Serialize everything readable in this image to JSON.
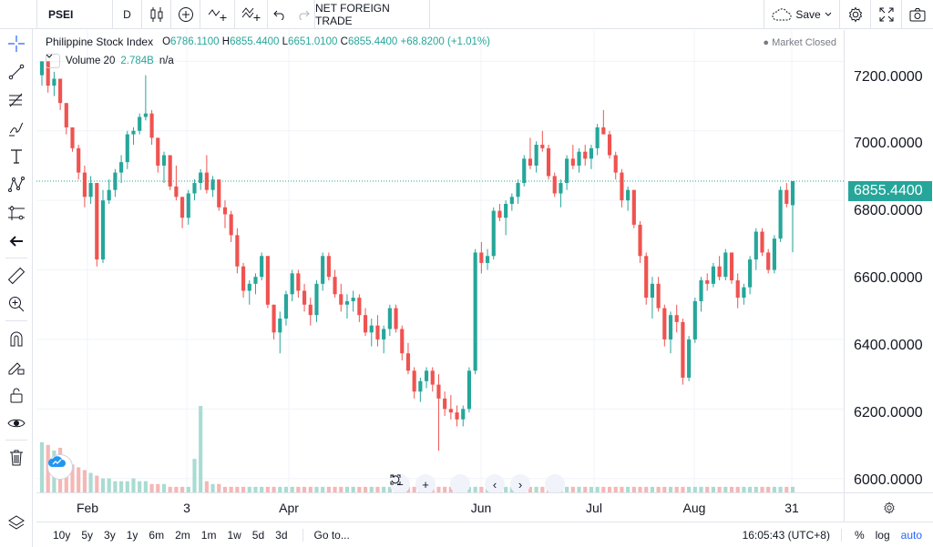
{
  "toolbar": {
    "symbol": "PSEI",
    "interval": "D",
    "indicator_label": "NET FOREIGN TRADE",
    "save_label": "Save"
  },
  "legend": {
    "title": "Philippine Stock Index",
    "o": "6786.1100",
    "h": "6855.4400",
    "l": "6651.0100",
    "c": "6855.4400",
    "change": "+68.8200 (+1.01%)",
    "market_status": "Market Closed",
    "volume_label": "Volume 20",
    "volume_value": "2.784B",
    "volume_ma": "n/a"
  },
  "price_scale": {
    "labels": [
      "7200.0000",
      "7000.0000",
      "6800.0000",
      "6600.0000",
      "6400.0000",
      "6200.0000",
      "6000.0000"
    ],
    "current": "6855.4400"
  },
  "time_scale": {
    "labels": [
      "Feb",
      "3",
      "Apr",
      "Jun",
      "Jul",
      "Aug",
      "31"
    ]
  },
  "bottom": {
    "ranges": [
      "10y",
      "5y",
      "3y",
      "1y",
      "6m",
      "2m",
      "1m",
      "1w",
      "5d",
      "3d"
    ],
    "goto": "Go to...",
    "clock": "16:05:43 (UTC+8)",
    "scale_opts": [
      "%",
      "log",
      "auto"
    ]
  },
  "colors": {
    "up": "#26a69a",
    "down": "#ef5350",
    "up_volume": "#a9dcd2",
    "down_volume": "#f5b7b5",
    "accent": "#2962ff"
  },
  "chart_data": {
    "type": "candlestick",
    "ylim": [
      5960,
      7290
    ],
    "candles": [
      [
        7160,
        7200,
        7130,
        7200
      ],
      [
        7200,
        7200,
        7110,
        7130
      ],
      [
        7130,
        7170,
        7100,
        7150
      ],
      [
        7150,
        7150,
        7060,
        7080
      ],
      [
        7080,
        7080,
        6990,
        7010
      ],
      [
        7010,
        7010,
        6940,
        6950
      ],
      [
        6950,
        6960,
        6860,
        6880
      ],
      [
        6880,
        6900,
        6780,
        6810
      ],
      [
        6810,
        6870,
        6790,
        6850
      ],
      [
        6850,
        6850,
        6610,
        6630
      ],
      [
        6630,
        6830,
        6620,
        6800
      ],
      [
        6800,
        6860,
        6790,
        6830
      ],
      [
        6830,
        6890,
        6810,
        6880
      ],
      [
        6880,
        6930,
        6850,
        6910
      ],
      [
        6910,
        7000,
        6890,
        6990
      ],
      [
        6990,
        7010,
        6960,
        7000
      ],
      [
        7000,
        7050,
        6990,
        7040
      ],
      [
        7040,
        7160,
        7030,
        7050
      ],
      [
        7050,
        7060,
        6960,
        6980
      ],
      [
        6980,
        6980,
        6880,
        6900
      ],
      [
        6900,
        6940,
        6850,
        6930
      ],
      [
        6930,
        6930,
        6830,
        6840
      ],
      [
        6840,
        6900,
        6800,
        6810
      ],
      [
        6810,
        6810,
        6720,
        6750
      ],
      [
        6750,
        6830,
        6730,
        6820
      ],
      [
        6820,
        6860,
        6800,
        6850
      ],
      [
        6850,
        6890,
        6830,
        6880
      ],
      [
        6880,
        6930,
        6820,
        6830
      ],
      [
        6830,
        6870,
        6810,
        6860
      ],
      [
        6860,
        6860,
        6770,
        6780
      ],
      [
        6780,
        6800,
        6720,
        6760
      ],
      [
        6760,
        6770,
        6680,
        6700
      ],
      [
        6700,
        6720,
        6590,
        6610
      ],
      [
        6610,
        6620,
        6520,
        6540
      ],
      [
        6540,
        6570,
        6500,
        6560
      ],
      [
        6560,
        6590,
        6530,
        6580
      ],
      [
        6580,
        6650,
        6570,
        6640
      ],
      [
        6640,
        6640,
        6490,
        6500
      ],
      [
        6500,
        6500,
        6400,
        6420
      ],
      [
        6420,
        6480,
        6360,
        6460
      ],
      [
        6460,
        6540,
        6440,
        6530
      ],
      [
        6530,
        6600,
        6510,
        6590
      ],
      [
        6590,
        6600,
        6520,
        6540
      ],
      [
        6540,
        6560,
        6480,
        6500
      ],
      [
        6500,
        6520,
        6440,
        6470
      ],
      [
        6470,
        6570,
        6450,
        6560
      ],
      [
        6560,
        6650,
        6540,
        6640
      ],
      [
        6640,
        6650,
        6570,
        6580
      ],
      [
        6580,
        6600,
        6520,
        6530
      ],
      [
        6530,
        6560,
        6480,
        6500
      ],
      [
        6500,
        6530,
        6460,
        6510
      ],
      [
        6510,
        6540,
        6480,
        6520
      ],
      [
        6520,
        6530,
        6450,
        6470
      ],
      [
        6470,
        6490,
        6410,
        6420
      ],
      [
        6420,
        6460,
        6380,
        6440
      ],
      [
        6440,
        6470,
        6380,
        6400
      ],
      [
        6400,
        6440,
        6360,
        6430
      ],
      [
        6430,
        6500,
        6410,
        6490
      ],
      [
        6490,
        6500,
        6420,
        6430
      ],
      [
        6430,
        6440,
        6340,
        6360
      ],
      [
        6360,
        6390,
        6300,
        6310
      ],
      [
        6310,
        6320,
        6230,
        6250
      ],
      [
        6250,
        6290,
        6220,
        6280
      ],
      [
        6280,
        6320,
        6260,
        6310
      ],
      [
        6310,
        6320,
        6250,
        6270
      ],
      [
        6270,
        6300,
        6080,
        6230
      ],
      [
        6230,
        6250,
        6180,
        6200
      ],
      [
        6200,
        6240,
        6170,
        6190
      ],
      [
        6190,
        6210,
        6150,
        6170
      ],
      [
        6170,
        6210,
        6150,
        6200
      ],
      [
        6200,
        6320,
        6190,
        6310
      ],
      [
        6310,
        6660,
        6300,
        6650
      ],
      [
        6650,
        6680,
        6590,
        6620
      ],
      [
        6620,
        6660,
        6600,
        6640
      ],
      [
        6640,
        6780,
        6630,
        6770
      ],
      [
        6770,
        6790,
        6740,
        6750
      ],
      [
        6750,
        6800,
        6700,
        6790
      ],
      [
        6790,
        6820,
        6770,
        6810
      ],
      [
        6810,
        6860,
        6790,
        6850
      ],
      [
        6850,
        6930,
        6840,
        6920
      ],
      [
        6920,
        6980,
        6890,
        6900
      ],
      [
        6900,
        6970,
        6880,
        6960
      ],
      [
        6960,
        7000,
        6940,
        6950
      ],
      [
        6950,
        6960,
        6860,
        6870
      ],
      [
        6870,
        6880,
        6810,
        6820
      ],
      [
        6820,
        6860,
        6780,
        6850
      ],
      [
        6850,
        6930,
        6830,
        6920
      ],
      [
        6920,
        6960,
        6890,
        6900
      ],
      [
        6900,
        6950,
        6880,
        6940
      ],
      [
        6940,
        6960,
        6900,
        6920
      ],
      [
        6920,
        6960,
        6890,
        6950
      ],
      [
        6950,
        7020,
        6930,
        7010
      ],
      [
        7010,
        7060,
        6990,
        6990
      ],
      [
        6990,
        7000,
        6920,
        6930
      ],
      [
        6930,
        6940,
        6860,
        6880
      ],
      [
        6880,
        6890,
        6780,
        6800
      ],
      [
        6800,
        6840,
        6770,
        6830
      ],
      [
        6830,
        6830,
        6720,
        6730
      ],
      [
        6730,
        6740,
        6620,
        6640
      ],
      [
        6640,
        6650,
        6500,
        6520
      ],
      [
        6520,
        6580,
        6460,
        6560
      ],
      [
        6560,
        6580,
        6480,
        6490
      ],
      [
        6490,
        6500,
        6380,
        6400
      ],
      [
        6400,
        6480,
        6360,
        6470
      ],
      [
        6470,
        6500,
        6420,
        6450
      ],
      [
        6450,
        6460,
        6270,
        6290
      ],
      [
        6290,
        6410,
        6280,
        6400
      ],
      [
        6400,
        6520,
        6390,
        6510
      ],
      [
        6510,
        6580,
        6480,
        6570
      ],
      [
        6570,
        6590,
        6540,
        6560
      ],
      [
        6560,
        6620,
        6550,
        6610
      ],
      [
        6610,
        6640,
        6570,
        6580
      ],
      [
        6580,
        6660,
        6570,
        6650
      ],
      [
        6650,
        6650,
        6560,
        6570
      ],
      [
        6570,
        6590,
        6490,
        6520
      ],
      [
        6520,
        6560,
        6500,
        6550
      ],
      [
        6550,
        6640,
        6530,
        6630
      ],
      [
        6630,
        6720,
        6600,
        6710
      ],
      [
        6710,
        6720,
        6640,
        6650
      ],
      [
        6650,
        6660,
        6590,
        6600
      ],
      [
        6600,
        6700,
        6590,
        6690
      ],
      [
        6690,
        6840,
        6680,
        6830
      ],
      [
        6830,
        6850,
        6780,
        6790
      ],
      [
        6786.11,
        6855.44,
        6651.01,
        6855.44
      ]
    ],
    "volume_max": 0.31,
    "volumes": [
      0.18,
      0.17,
      0.15,
      0.16,
      0.12,
      0.1,
      0.09,
      0.08,
      0.07,
      0.06,
      0.05,
      0.05,
      0.04,
      0.04,
      0.04,
      0.05,
      0.04,
      0.04,
      0.03,
      0.03,
      0.03,
      0.02,
      0.02,
      0.02,
      0.02,
      0.12,
      0.31,
      0.04,
      0.03,
      0.03,
      0.02,
      0.02,
      0.02,
      0.02,
      0.02,
      0.02,
      0.02,
      0.02,
      0.02,
      0.02,
      0.02,
      0.02,
      0.02,
      0.02,
      0.02,
      0.02,
      0.02,
      0.02,
      0.02,
      0.02,
      0.02,
      0.02,
      0.02,
      0.02,
      0.02,
      0.02,
      0.02,
      0.02,
      0.02,
      0.02,
      0.02,
      0.02,
      0.02,
      0.02,
      0.02,
      0.02,
      0.02,
      0.02,
      0.02,
      0.02,
      0.02,
      0.02,
      0.02,
      0.02,
      0.02,
      0.02,
      0.02,
      0.02,
      0.02,
      0.02,
      0.02,
      0.02,
      0.02,
      0.02,
      0.02,
      0.02,
      0.02,
      0.02,
      0.02,
      0.02,
      0.02,
      0.02,
      0.02,
      0.02,
      0.02,
      0.02,
      0.02,
      0.02,
      0.02,
      0.02,
      0.02,
      0.02,
      0.02,
      0.02,
      0.02,
      0.02,
      0.02,
      0.02,
      0.02,
      0.02,
      0.02,
      0.02,
      0.02,
      0.02,
      0.02,
      0.02,
      0.02,
      0.02,
      0.02,
      0.02,
      0.02,
      0.02,
      0.02,
      0.02
    ]
  }
}
